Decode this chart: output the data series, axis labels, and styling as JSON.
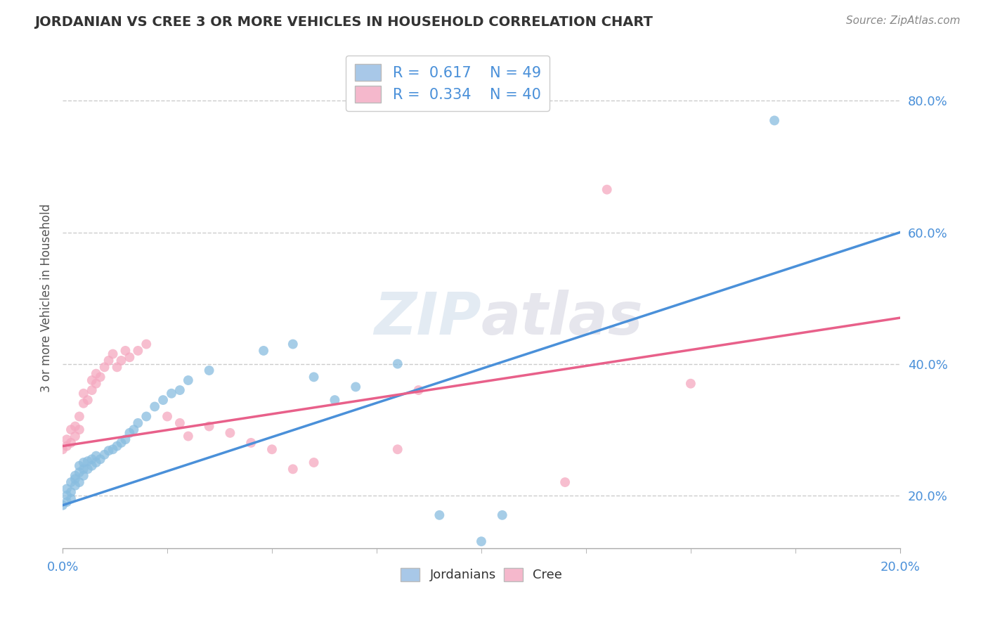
{
  "title": "JORDANIAN VS CREE 3 OR MORE VEHICLES IN HOUSEHOLD CORRELATION CHART",
  "source": "Source: ZipAtlas.com",
  "ylabel": "3 or more Vehicles in Household",
  "ytick_values": [
    0.2,
    0.4,
    0.6,
    0.8
  ],
  "xlim": [
    0.0,
    0.2
  ],
  "ylim": [
    0.12,
    0.88
  ],
  "jordanian_scatter": [
    [
      0.0,
      0.185
    ],
    [
      0.001,
      0.19
    ],
    [
      0.001,
      0.2
    ],
    [
      0.001,
      0.21
    ],
    [
      0.002,
      0.195
    ],
    [
      0.002,
      0.205
    ],
    [
      0.002,
      0.22
    ],
    [
      0.003,
      0.215
    ],
    [
      0.003,
      0.225
    ],
    [
      0.003,
      0.23
    ],
    [
      0.004,
      0.22
    ],
    [
      0.004,
      0.235
    ],
    [
      0.004,
      0.245
    ],
    [
      0.005,
      0.23
    ],
    [
      0.005,
      0.24
    ],
    [
      0.005,
      0.25
    ],
    [
      0.006,
      0.24
    ],
    [
      0.006,
      0.252
    ],
    [
      0.007,
      0.245
    ],
    [
      0.007,
      0.255
    ],
    [
      0.008,
      0.25
    ],
    [
      0.008,
      0.26
    ],
    [
      0.009,
      0.255
    ],
    [
      0.01,
      0.262
    ],
    [
      0.011,
      0.268
    ],
    [
      0.012,
      0.27
    ],
    [
      0.013,
      0.275
    ],
    [
      0.014,
      0.28
    ],
    [
      0.015,
      0.285
    ],
    [
      0.016,
      0.295
    ],
    [
      0.017,
      0.3
    ],
    [
      0.018,
      0.31
    ],
    [
      0.02,
      0.32
    ],
    [
      0.022,
      0.335
    ],
    [
      0.024,
      0.345
    ],
    [
      0.026,
      0.355
    ],
    [
      0.028,
      0.36
    ],
    [
      0.03,
      0.375
    ],
    [
      0.035,
      0.39
    ],
    [
      0.048,
      0.42
    ],
    [
      0.055,
      0.43
    ],
    [
      0.06,
      0.38
    ],
    [
      0.065,
      0.345
    ],
    [
      0.07,
      0.365
    ],
    [
      0.08,
      0.4
    ],
    [
      0.09,
      0.17
    ],
    [
      0.105,
      0.17
    ],
    [
      0.1,
      0.13
    ],
    [
      0.17,
      0.77
    ]
  ],
  "cree_scatter": [
    [
      0.0,
      0.27
    ],
    [
      0.001,
      0.275
    ],
    [
      0.001,
      0.285
    ],
    [
      0.002,
      0.28
    ],
    [
      0.002,
      0.3
    ],
    [
      0.003,
      0.29
    ],
    [
      0.003,
      0.305
    ],
    [
      0.004,
      0.3
    ],
    [
      0.004,
      0.32
    ],
    [
      0.005,
      0.34
    ],
    [
      0.005,
      0.355
    ],
    [
      0.006,
      0.345
    ],
    [
      0.007,
      0.36
    ],
    [
      0.007,
      0.375
    ],
    [
      0.008,
      0.37
    ],
    [
      0.008,
      0.385
    ],
    [
      0.009,
      0.38
    ],
    [
      0.01,
      0.395
    ],
    [
      0.011,
      0.405
    ],
    [
      0.012,
      0.415
    ],
    [
      0.013,
      0.395
    ],
    [
      0.014,
      0.405
    ],
    [
      0.015,
      0.42
    ],
    [
      0.016,
      0.41
    ],
    [
      0.018,
      0.42
    ],
    [
      0.02,
      0.43
    ],
    [
      0.025,
      0.32
    ],
    [
      0.028,
      0.31
    ],
    [
      0.03,
      0.29
    ],
    [
      0.035,
      0.305
    ],
    [
      0.04,
      0.295
    ],
    [
      0.045,
      0.28
    ],
    [
      0.05,
      0.27
    ],
    [
      0.055,
      0.24
    ],
    [
      0.06,
      0.25
    ],
    [
      0.08,
      0.27
    ],
    [
      0.085,
      0.36
    ],
    [
      0.12,
      0.22
    ],
    [
      0.13,
      0.665
    ],
    [
      0.15,
      0.37
    ]
  ],
  "jordan_color": "#89bde0",
  "jordan_line_color": "#4a90d9",
  "cree_color": "#f5a8c0",
  "cree_line_color": "#e8608a",
  "jordan_line_x0": 0.0,
  "jordan_line_y0": 0.185,
  "jordan_line_x1": 0.2,
  "jordan_line_y1": 0.6,
  "cree_line_x0": 0.0,
  "cree_line_y0": 0.275,
  "cree_line_x1": 0.2,
  "cree_line_y1": 0.47,
  "background_color": "#ffffff",
  "grid_color": "#cccccc"
}
